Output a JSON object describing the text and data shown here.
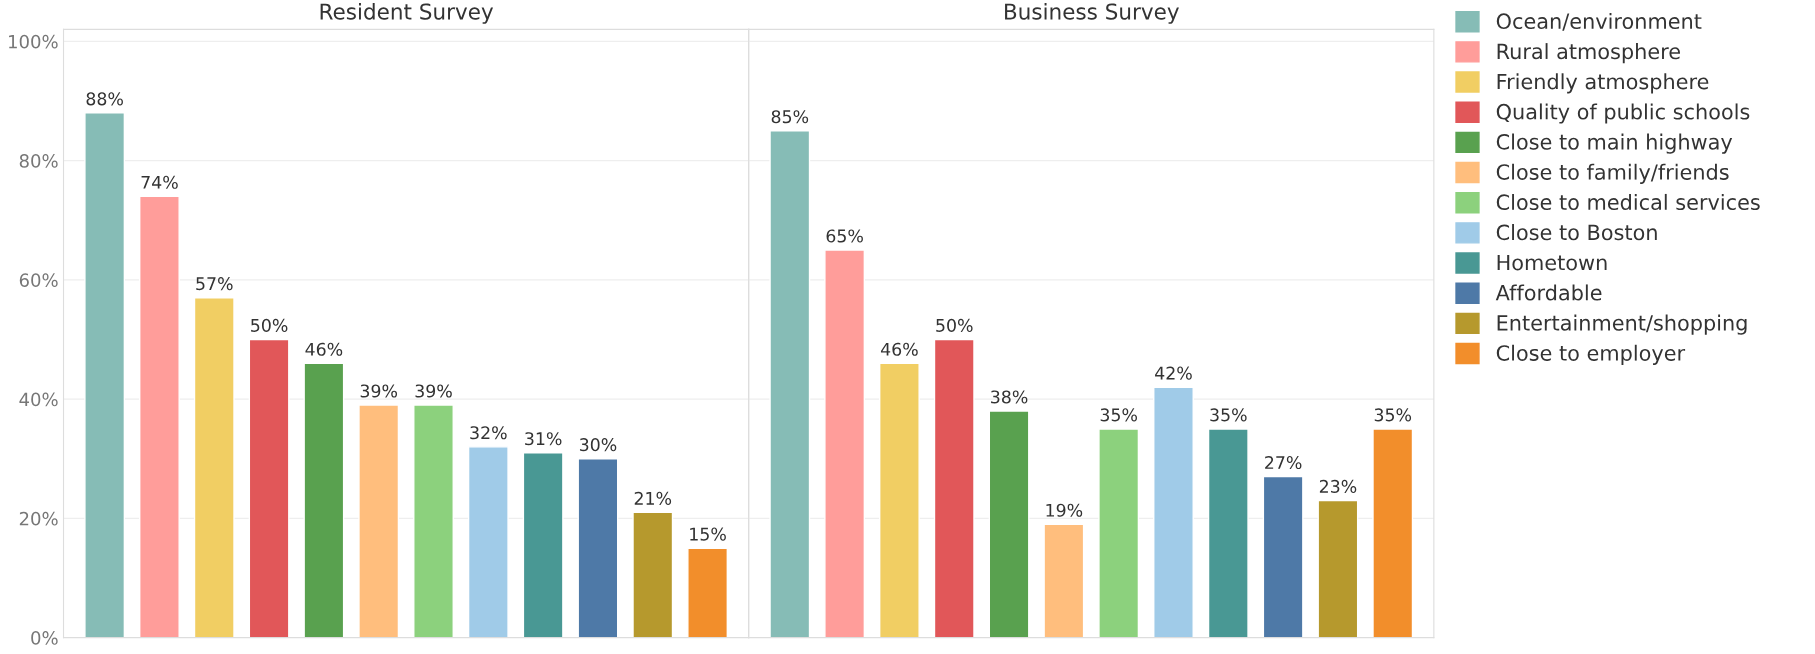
{
  "chart_data": {
    "type": "bar",
    "categories": [
      "Resident Survey",
      "Business Survey"
    ],
    "ylim": [
      0,
      102
    ],
    "yticks": [
      {
        "value": 0,
        "label": "0%"
      },
      {
        "value": 20,
        "label": "20%"
      },
      {
        "value": 40,
        "label": "40%"
      },
      {
        "value": 60,
        "label": "60%"
      },
      {
        "value": 80,
        "label": "80%"
      },
      {
        "value": 100,
        "label": "100%"
      }
    ],
    "grid": "y",
    "legend": "right",
    "series": [
      {
        "name": "Ocean/environment",
        "color": "#86bcb6",
        "values": [
          88,
          85
        ],
        "value_labels": [
          "88%",
          "85%"
        ]
      },
      {
        "name": "Rural atmosphere",
        "color": "#ff9d9a",
        "values": [
          74,
          65
        ],
        "value_labels": [
          "74%",
          "65%"
        ]
      },
      {
        "name": "Friendly atmosphere",
        "color": "#f1ce63",
        "values": [
          57,
          46
        ],
        "value_labels": [
          "57%",
          "46%"
        ]
      },
      {
        "name": "Quality of public schools",
        "color": "#e15759",
        "values": [
          50,
          50
        ],
        "value_labels": [
          "50%",
          "50%"
        ]
      },
      {
        "name": "Close to main highway",
        "color": "#59a14f",
        "values": [
          46,
          38
        ],
        "value_labels": [
          "46%",
          "38%"
        ]
      },
      {
        "name": "Close to family/friends",
        "color": "#ffbe7d",
        "values": [
          39,
          19
        ],
        "value_labels": [
          "39%",
          "19%"
        ]
      },
      {
        "name": "Close to medical services",
        "color": "#8cd17d",
        "values": [
          39,
          35
        ],
        "value_labels": [
          "39%",
          "35%"
        ]
      },
      {
        "name": "Close to Boston",
        "color": "#a0cbe8",
        "values": [
          32,
          42
        ],
        "value_labels": [
          "32%",
          "42%"
        ]
      },
      {
        "name": "Hometown",
        "color": "#499894",
        "values": [
          31,
          35
        ],
        "value_labels": [
          "31%",
          "35%"
        ]
      },
      {
        "name": "Affordable",
        "color": "#4e79a7",
        "values": [
          30,
          27
        ],
        "value_labels": [
          "30%",
          "27%"
        ]
      },
      {
        "name": "Entertainment/shopping",
        "color": "#b6992d",
        "values": [
          21,
          23
        ],
        "value_labels": [
          "21%",
          "23%"
        ]
      },
      {
        "name": "Close to employer",
        "color": "#f28e2b",
        "values": [
          15,
          35
        ],
        "value_labels": [
          "15%",
          "35%"
        ]
      }
    ]
  }
}
